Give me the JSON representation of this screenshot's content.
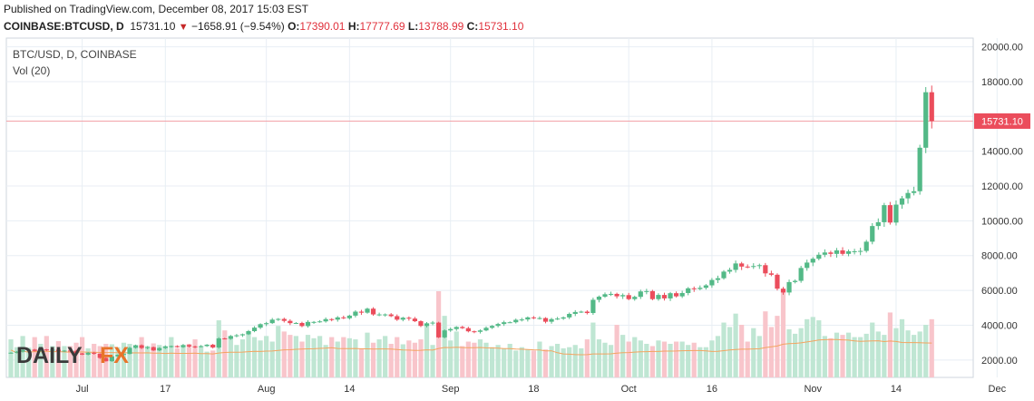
{
  "header": {
    "published": "Published on TradingView.com, December 08, 2017 15:03 EST",
    "symbol": "COINBASE:BTCUSD, D",
    "last": "15731.10",
    "change": "−1658.91 (−9.54%)",
    "open_label": "O:",
    "open": "17390.01",
    "high_label": "H:",
    "high": "17777.69",
    "low_label": "L:",
    "low": "13788.99",
    "close_label": "C:",
    "close": "15731.10"
  },
  "logo": {
    "part1": "DAILY",
    "part2": "FX"
  },
  "colors": {
    "up": "#53b987",
    "down": "#eb4d5c",
    "vol_up": "#bfe6d3",
    "vol_down": "#f8c5cb",
    "ma": "#f4a460",
    "price_line": "#f2a3a9",
    "grid": "#e8eef4"
  },
  "chart_data": {
    "type": "candlestick",
    "title": "BTC/USD, D, COINBASE",
    "volume_label": "Vol (20)",
    "x_ticks": [
      "Jul",
      "17",
      "Aug",
      "14",
      "Sep",
      "18",
      "Oct",
      "16",
      "Nov",
      "14",
      "Dec"
    ],
    "y_ticks": [
      "20000.00",
      "18000.00",
      "16000.00",
      "14000.00",
      "12000.00",
      "10000.00",
      "8000.00",
      "6000.00",
      "4000.00",
      "2000.00"
    ],
    "ylim": [
      1000,
      20500
    ],
    "last_price_label": "15731.10",
    "last_price": 15731.1,
    "close": [
      2420,
      2480,
      2560,
      2600,
      2520,
      2610,
      2570,
      2590,
      2500,
      2540,
      2530,
      2380,
      2310,
      2420,
      2360,
      2120,
      1930,
      2210,
      2300,
      2350,
      2700,
      2850,
      2690,
      2740,
      2550,
      2690,
      2780,
      2800,
      2740,
      2860,
      2780,
      2750,
      2800,
      2880,
      2720,
      3240,
      3220,
      3380,
      3420,
      3480,
      3660,
      3860,
      4060,
      4120,
      4320,
      4360,
      4250,
      4120,
      4130,
      3950,
      4190,
      4190,
      4220,
      4350,
      4320,
      4450,
      4400,
      4550,
      4780,
      4720,
      4950,
      4620,
      4620,
      4620,
      4520,
      4320,
      4430,
      4380,
      4230,
      3960,
      4110,
      4150,
      3300,
      3700,
      3780,
      3900,
      3830,
      3650,
      3620,
      3700,
      3850,
      3960,
      4070,
      4170,
      4170,
      4310,
      4330,
      4450,
      4400,
      4410,
      4200,
      4350,
      4380,
      4450,
      4650,
      4760,
      4780,
      4700,
      5460,
      5640,
      5780,
      5800,
      5660,
      5730,
      5500,
      5630,
      5940,
      5960,
      5500,
      5740,
      5540,
      5840,
      5660,
      5850,
      6120,
      6080,
      6150,
      6290,
      6600,
      6700,
      7080,
      7180,
      7550,
      7370,
      7360,
      7400,
      7450,
      6980,
      6900,
      6100,
      5880,
      6480,
      6550,
      7290,
      7600,
      7820,
      8050,
      8180,
      8100,
      8300,
      8100,
      8250,
      8250,
      8270,
      8800,
      9700,
      9920,
      10900,
      9900,
      10930,
      11290,
      11600,
      11700,
      14200,
      17390,
      15731
    ],
    "volume": [
      1700,
      1350,
      1850,
      1330,
      1800,
      1500,
      1850,
      1400,
      1620,
      1400,
      1400,
      1550,
      1800,
      1300,
      1500,
      1400,
      1500,
      1480,
      1350,
      1550,
      1500,
      1380,
      1800,
      1400,
      1520,
      1450,
      1400,
      1800,
      1300,
      1400,
      1500,
      1700,
      1400,
      1150,
      1200,
      2550,
      2100,
      1750,
      1450,
      1700,
      2000,
      1800,
      1650,
      1850,
      1600,
      2300,
      2050,
      1900,
      1850,
      1600,
      1900,
      1750,
      1850,
      1450,
      1800,
      1600,
      1800,
      1750,
      1700,
      1300,
      2000,
      1550,
      1700,
      1850,
      1500,
      1800,
      1480,
      1650,
      1550,
      1700,
      2400,
      1450,
      3850,
      2750,
      1650,
      2050,
      1400,
      1600,
      1550,
      1700,
      1550,
      1350,
      1450,
      1300,
      1500,
      1200,
      1350,
      1250,
      1200,
      1600,
      1250,
      1400,
      1500,
      1300,
      1350,
      1450,
      1300,
      1700,
      2450,
      1700,
      1550,
      1450,
      2350,
      1900,
      1600,
      1800,
      1650,
      1500,
      1400,
      1650,
      1600,
      1500,
      1600,
      1600,
      1450,
      1550,
      1350,
      1350,
      1650,
      1850,
      2450,
      2250,
      2850,
      2350,
      1600,
      2200,
      1850,
      2950,
      2250,
      2750,
      3850,
      2150,
      1950,
      2200,
      2600,
      2700,
      2550,
      1850,
      1750,
      2000,
      1900,
      2000,
      1800,
      1800,
      1950,
      2450,
      2050,
      1900,
      2900,
      2200,
      2600,
      2100,
      1900,
      2050,
      2350,
      2600
    ]
  }
}
